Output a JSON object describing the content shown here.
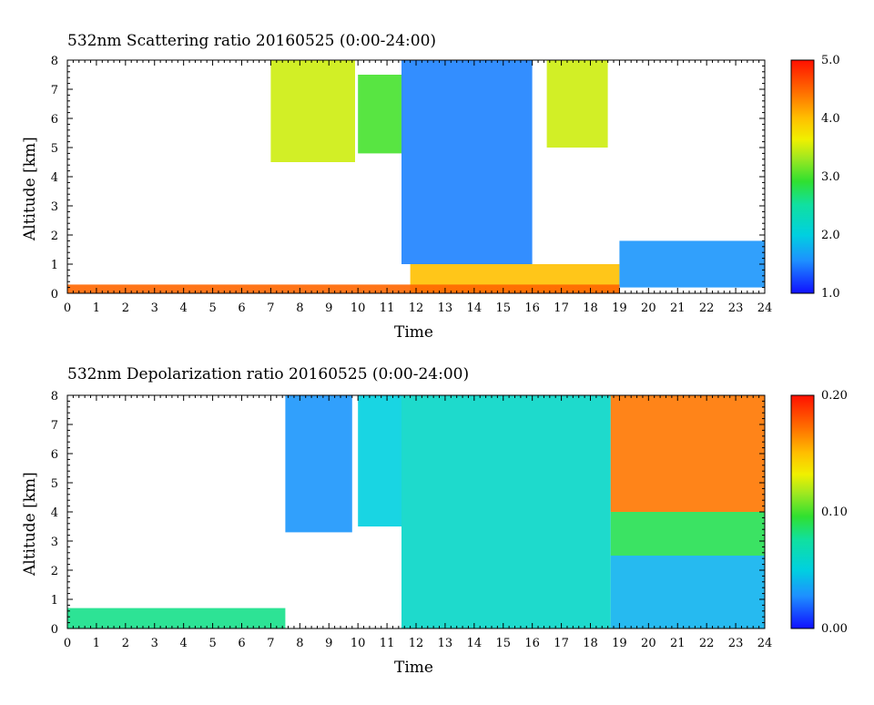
{
  "charts": [
    {
      "title": "532nm Scattering ratio  20160525 (0:00-24:00)",
      "xlabel": "Time",
      "ylabel": "Altitude [km]",
      "colorbar": {
        "min": 1.0,
        "max": 5.0,
        "labels": [
          "5.0",
          "4.0",
          "3.0",
          "2.0",
          "1.0"
        ]
      }
    },
    {
      "title": "532nm Depolarization ratio  20160525 (0:00-24:00)",
      "xlabel": "Time",
      "ylabel": "Altitude [km]",
      "colorbar": {
        "min": 0.0,
        "max": 0.2,
        "labels": [
          "0.20",
          "0.10",
          "0.00"
        ]
      }
    }
  ],
  "chart_data": [
    {
      "type": "heatmap",
      "title": "532nm Scattering ratio  20160525 (0:00-24:00)",
      "xlabel": "Time",
      "ylabel": "Altitude [km]",
      "xlim": [
        0,
        24
      ],
      "ylim": [
        0,
        8
      ],
      "x_ticks": [
        "0",
        "1",
        "2",
        "3",
        "4",
        "5",
        "6",
        "7",
        "8",
        "9",
        "10",
        "11",
        "12",
        "13",
        "14",
        "15",
        "16",
        "17",
        "18",
        "19",
        "20",
        "21",
        "22",
        "23",
        "24"
      ],
      "y_ticks": [
        "0",
        "1",
        "2",
        "3",
        "4",
        "5",
        "6",
        "7",
        "8"
      ],
      "colorbar": {
        "min": 1.0,
        "max": 5.0,
        "ticks": [
          1.0,
          2.0,
          3.0,
          4.0,
          5.0
        ]
      },
      "features": [
        {
          "t": [
            7.0,
            9.9
          ],
          "alt": [
            4.5,
            8.0
          ],
          "value": 3.5
        },
        {
          "t": [
            10.0,
            11.5
          ],
          "alt": [
            4.8,
            7.5
          ],
          "value": 3.0
        },
        {
          "t": [
            11.5,
            16.0
          ],
          "alt": [
            1.0,
            8.0
          ],
          "value": 1.5
        },
        {
          "t": [
            16.5,
            18.6
          ],
          "alt": [
            5.0,
            8.0
          ],
          "value": 3.5
        },
        {
          "t": [
            11.8,
            19.0
          ],
          "alt": [
            0.0,
            1.0
          ],
          "value": 4.0
        },
        {
          "t": [
            19.0,
            24.0
          ],
          "alt": [
            0.2,
            1.8
          ],
          "value": 1.6
        },
        {
          "t": [
            0.0,
            19.0
          ],
          "alt": [
            0.0,
            0.3
          ],
          "value": 4.5
        }
      ]
    },
    {
      "type": "heatmap",
      "title": "532nm Depolarization ratio  20160525 (0:00-24:00)",
      "xlabel": "Time",
      "ylabel": "Altitude [km]",
      "xlim": [
        0,
        24
      ],
      "ylim": [
        0,
        8
      ],
      "x_ticks": [
        "0",
        "1",
        "2",
        "3",
        "4",
        "5",
        "6",
        "7",
        "8",
        "9",
        "10",
        "11",
        "12",
        "13",
        "14",
        "15",
        "16",
        "17",
        "18",
        "19",
        "20",
        "21",
        "22",
        "23",
        "24"
      ],
      "y_ticks": [
        "0",
        "1",
        "2",
        "3",
        "4",
        "5",
        "6",
        "7",
        "8"
      ],
      "colorbar": {
        "min": 0.0,
        "max": 0.2,
        "ticks": [
          0.0,
          0.1,
          0.2
        ]
      },
      "features": [
        {
          "t": [
            7.5,
            9.8
          ],
          "alt": [
            3.3,
            8.0
          ],
          "value": 0.03
        },
        {
          "t": [
            10.0,
            11.5
          ],
          "alt": [
            3.5,
            8.0
          ],
          "value": 0.05
        },
        {
          "t": [
            11.5,
            18.7
          ],
          "alt": [
            0.0,
            8.0
          ],
          "value": 0.06
        },
        {
          "t": [
            18.7,
            24.0
          ],
          "alt": [
            4.0,
            8.0
          ],
          "value": 0.17
        },
        {
          "t": [
            18.7,
            24.0
          ],
          "alt": [
            2.5,
            4.0
          ],
          "value": 0.09
        },
        {
          "t": [
            18.7,
            24.0
          ],
          "alt": [
            0.0,
            2.5
          ],
          "value": 0.04
        },
        {
          "t": [
            0.0,
            7.5
          ],
          "alt": [
            0.0,
            0.7
          ],
          "value": 0.08
        }
      ]
    }
  ]
}
